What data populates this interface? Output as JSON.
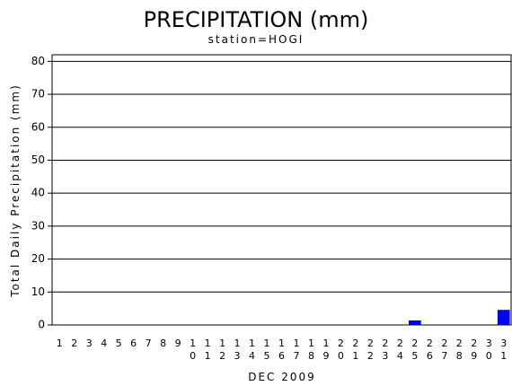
{
  "chart_data": {
    "type": "bar",
    "title": "PRECIPITATION (mm)",
    "subtitle": "station=HOGI",
    "y_label": "Total Daily Precipitation (mm)",
    "x_label": "DEC 2009",
    "categories": [
      "1",
      "2",
      "3",
      "4",
      "5",
      "6",
      "7",
      "8",
      "9",
      "10",
      "11",
      "12",
      "13",
      "14",
      "15",
      "16",
      "17",
      "18",
      "19",
      "20",
      "21",
      "22",
      "23",
      "24",
      "25",
      "26",
      "27",
      "28",
      "29",
      "30",
      "31"
    ],
    "values": [
      0,
      0,
      0,
      0,
      0,
      0,
      0,
      0,
      0,
      0,
      0,
      0,
      0,
      0,
      0,
      0,
      0,
      0,
      0,
      0,
      0,
      0,
      0,
      0,
      1.3,
      0,
      0,
      0,
      0,
      0,
      4.5
    ],
    "color": "#0000ff",
    "ylim": [
      0,
      82
    ],
    "yticks": [
      0,
      10,
      20,
      30,
      40,
      50,
      60,
      70,
      80
    ],
    "grid": true
  }
}
